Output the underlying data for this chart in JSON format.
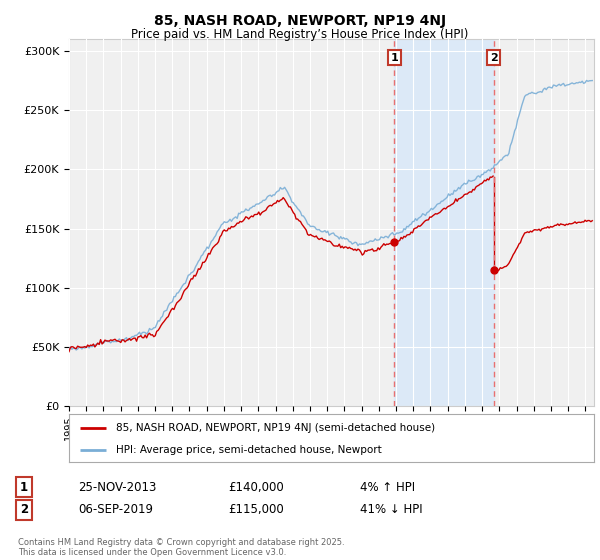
{
  "title": "85, NASH ROAD, NEWPORT, NP19 4NJ",
  "subtitle": "Price paid vs. HM Land Registry’s House Price Index (HPI)",
  "ylabel_ticks": [
    "£0",
    "£50K",
    "£100K",
    "£150K",
    "£200K",
    "£250K",
    "£300K"
  ],
  "ytick_values": [
    0,
    50000,
    100000,
    150000,
    200000,
    250000,
    300000
  ],
  "ylim": [
    0,
    310000
  ],
  "xlim_start": 1995.0,
  "xlim_end": 2025.5,
  "shade_x1_start": 2013.9,
  "shade_x1_end": 2019.67,
  "shade_color": "#dce9f7",
  "vline1_x": 2013.9,
  "vline2_x": 2019.67,
  "vline_color": "#e87070",
  "marker_box_color": "#c0392b",
  "red_line_color": "#cc0000",
  "blue_line_color": "#7aaed6",
  "legend_label_red": "85, NASH ROAD, NEWPORT, NP19 4NJ (semi-detached house)",
  "legend_label_blue": "HPI: Average price, semi-detached house, Newport",
  "table_row1": [
    "1",
    "25-NOV-2013",
    "£140,000",
    "4% ↑ HPI"
  ],
  "table_row2": [
    "2",
    "06-SEP-2019",
    "£115,000",
    "41% ↓ HPI"
  ],
  "footnote": "Contains HM Land Registry data © Crown copyright and database right 2025.\nThis data is licensed under the Open Government Licence v3.0.",
  "background_color": "#ffffff",
  "plot_bg_color": "#f0f0f0",
  "sale1_x": 2013.9,
  "sale1_y": 140000,
  "sale2_x": 2019.67,
  "sale2_y": 115000
}
